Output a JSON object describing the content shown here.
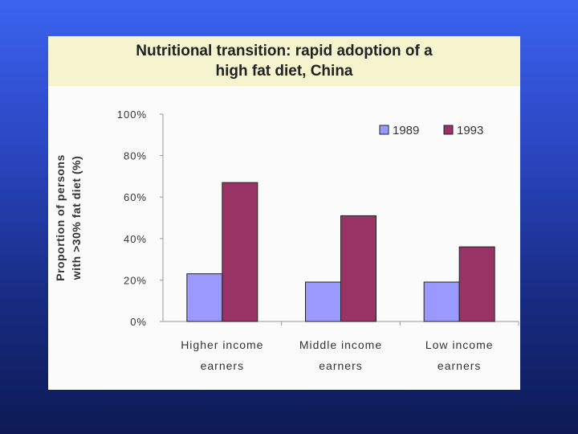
{
  "chart_data": {
    "type": "bar",
    "title": [
      "Nutritional transition: rapid adoption of a",
      "high fat diet, China"
    ],
    "xlabel": "",
    "ylabel": [
      "Proportion of persons",
      "with >30% fat diet (%)"
    ],
    "categories": [
      [
        "Higher income",
        "earners"
      ],
      [
        "Middle income",
        "earners"
      ],
      [
        "Low income",
        "earners"
      ]
    ],
    "series": [
      {
        "name": "1989",
        "color": "#9999ff",
        "values": [
          23,
          19,
          19
        ]
      },
      {
        "name": "1993",
        "color": "#993366",
        "values": [
          67,
          51,
          36
        ]
      }
    ],
    "ylim": [
      0,
      100
    ],
    "yticks": [
      "0%",
      "20%",
      "40%",
      "60%",
      "80%",
      "100%"
    ],
    "legend": "top-right",
    "grid": false
  }
}
